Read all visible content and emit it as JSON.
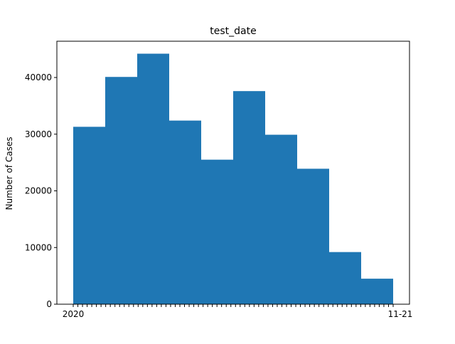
{
  "chart_data": {
    "type": "bar",
    "title": "test_date",
    "xlabel": "",
    "ylabel": "Number of Cases",
    "ylim": [
      0,
      46400
    ],
    "yticks": [
      0,
      10000,
      20000,
      30000,
      40000
    ],
    "ytick_labels": [
      "0",
      "10000",
      "20000",
      "30000",
      "40000"
    ],
    "bin_edge_range": [
      0,
      1
    ],
    "bins": 10,
    "values": [
      31300,
      40100,
      44200,
      32400,
      25500,
      37600,
      29900,
      23900,
      9200,
      4500
    ],
    "xtick_first_label": "2020",
    "xtick_last_label": "11-21",
    "xtick_count": 70,
    "color": "#1f77b4",
    "grid": false,
    "legend": "none"
  }
}
